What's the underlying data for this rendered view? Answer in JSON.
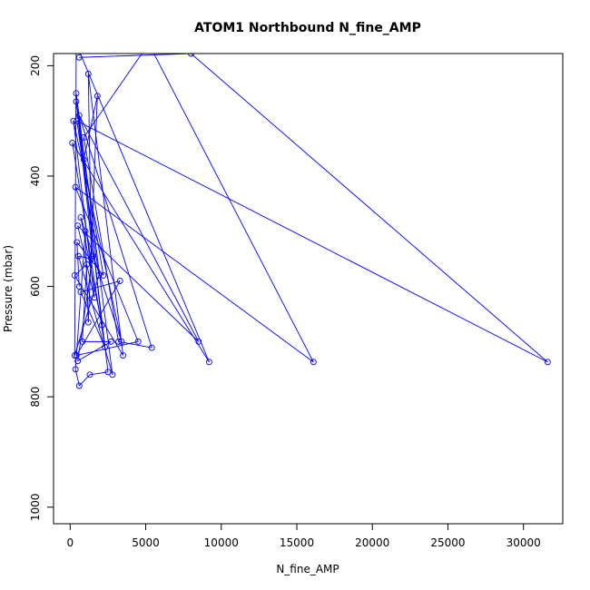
{
  "chart_data": {
    "type": "line",
    "title": "ATOM1 Northbound N_fine_AMP",
    "xlabel": "N_fine_AMP",
    "ylabel": "Pressure (mbar)",
    "xlim": [
      -1100,
      32600
    ],
    "ylim": [
      1030,
      178
    ],
    "y_reversed": true,
    "x_ticks": [
      0,
      5000,
      10000,
      15000,
      20000,
      25000,
      30000
    ],
    "x_tick_labels": [
      "0",
      "5000",
      "10000",
      "15000",
      "20000",
      "25000",
      "30000"
    ],
    "y_ticks": [
      200,
      400,
      600,
      800,
      1000
    ],
    "y_tick_labels": [
      "200",
      "400",
      "600",
      "800",
      "1000"
    ],
    "grid": false,
    "marker": "open-circle",
    "color": "#0000ff",
    "series": [
      {
        "name": "",
        "points": [
          [
            600,
            185
          ],
          [
            8000,
            178
          ],
          [
            31600,
            737
          ],
          [
            450,
            300
          ],
          [
            1900,
            580
          ],
          [
            300,
            725
          ],
          [
            400,
            160
          ],
          [
            9200,
            737
          ],
          [
            150,
            340
          ],
          [
            2300,
            710
          ],
          [
            700,
            610
          ],
          [
            3300,
            590
          ],
          [
            420,
            725
          ],
          [
            4500,
            700
          ],
          [
            350,
            420
          ],
          [
            16100,
            737
          ],
          [
            5200,
            160
          ],
          [
            900,
            330
          ],
          [
            3200,
            700
          ],
          [
            5400,
            711
          ],
          [
            600,
            290
          ],
          [
            8500,
            700
          ],
          [
            500,
            490
          ],
          [
            1600,
            620
          ],
          [
            220,
            300
          ],
          [
            3400,
            700
          ],
          [
            700,
            475
          ],
          [
            2100,
            670
          ],
          [
            400,
            250
          ],
          [
            2800,
            760
          ],
          [
            550,
            545
          ],
          [
            1400,
            550
          ],
          [
            1200,
            215
          ],
          [
            3500,
            725
          ],
          [
            300,
            580
          ],
          [
            1100,
            560
          ],
          [
            800,
            700
          ],
          [
            2700,
            700
          ],
          [
            500,
            735
          ],
          [
            1500,
            545
          ],
          [
            400,
            265
          ],
          [
            2500,
            755
          ],
          [
            1300,
            760
          ],
          [
            600,
            780
          ],
          [
            350,
            750
          ],
          [
            1000,
            500
          ],
          [
            1200,
            665
          ],
          [
            1800,
            255
          ],
          [
            900,
            370
          ],
          [
            2200,
            580
          ],
          [
            450,
            520
          ],
          [
            600,
            600
          ]
        ]
      }
    ]
  }
}
